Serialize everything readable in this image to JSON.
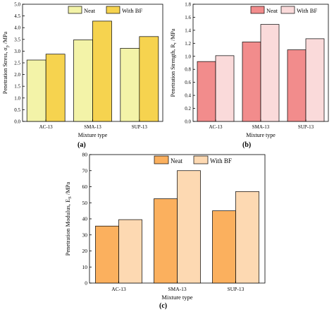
{
  "chart_data": [
    {
      "type": "bar",
      "panel_label": "(a)",
      "categories": [
        "AC-13",
        "SMA-13",
        "SUP-13"
      ],
      "series": [
        {
          "name": "Neat",
          "values": [
            2.62,
            3.48,
            3.12
          ],
          "color": "#f3f3a8"
        },
        {
          "name": "With BF",
          "values": [
            2.87,
            4.28,
            3.62
          ],
          "color": "#f6d34f"
        }
      ],
      "xlabel": "Mixture type",
      "ylabel": "Penetration Stress, σp /MPa",
      "ylim": [
        0,
        5
      ],
      "yticks": [
        "0.0",
        "0.5",
        "1.0",
        "1.5",
        "2.0",
        "2.5",
        "3.0",
        "3.5",
        "4.0",
        "4.5",
        "5.0"
      ],
      "legend": "top"
    },
    {
      "type": "bar",
      "panel_label": "(b)",
      "categories": [
        "AC-13",
        "SMA-13",
        "SUP-13"
      ],
      "series": [
        {
          "name": "Neat",
          "values": [
            0.92,
            1.22,
            1.1
          ],
          "color": "#f28c8c"
        },
        {
          "name": "With BF",
          "values": [
            1.01,
            1.49,
            1.27
          ],
          "color": "#fadada"
        }
      ],
      "xlabel": "Mixture type",
      "ylabel": "Penetration Strength, Rτ /MPa",
      "ylim": [
        0,
        1.8
      ],
      "yticks": [
        "0.0",
        "0.2",
        "0.4",
        "0.6",
        "0.8",
        "1.0",
        "1.2",
        "1.4",
        "1.6",
        "1.8"
      ],
      "legend": "top"
    },
    {
      "type": "bar",
      "panel_label": "(c)",
      "categories": [
        "AC-13",
        "SMA-13",
        "SUP-13"
      ],
      "series": [
        {
          "name": "Neat",
          "values": [
            35.5,
            52.5,
            45.0
          ],
          "color": "#fbb05e"
        },
        {
          "name": "With BF",
          "values": [
            39.5,
            70.0,
            57.0
          ],
          "color": "#fdd9b2"
        }
      ],
      "xlabel": "Mixture type",
      "ylabel": "Penetration Modulus, ES /MPa",
      "ylim": [
        0,
        80
      ],
      "yticks": [
        "0",
        "10",
        "20",
        "30",
        "40",
        "50",
        "60",
        "70",
        "80"
      ],
      "legend": "top"
    }
  ]
}
